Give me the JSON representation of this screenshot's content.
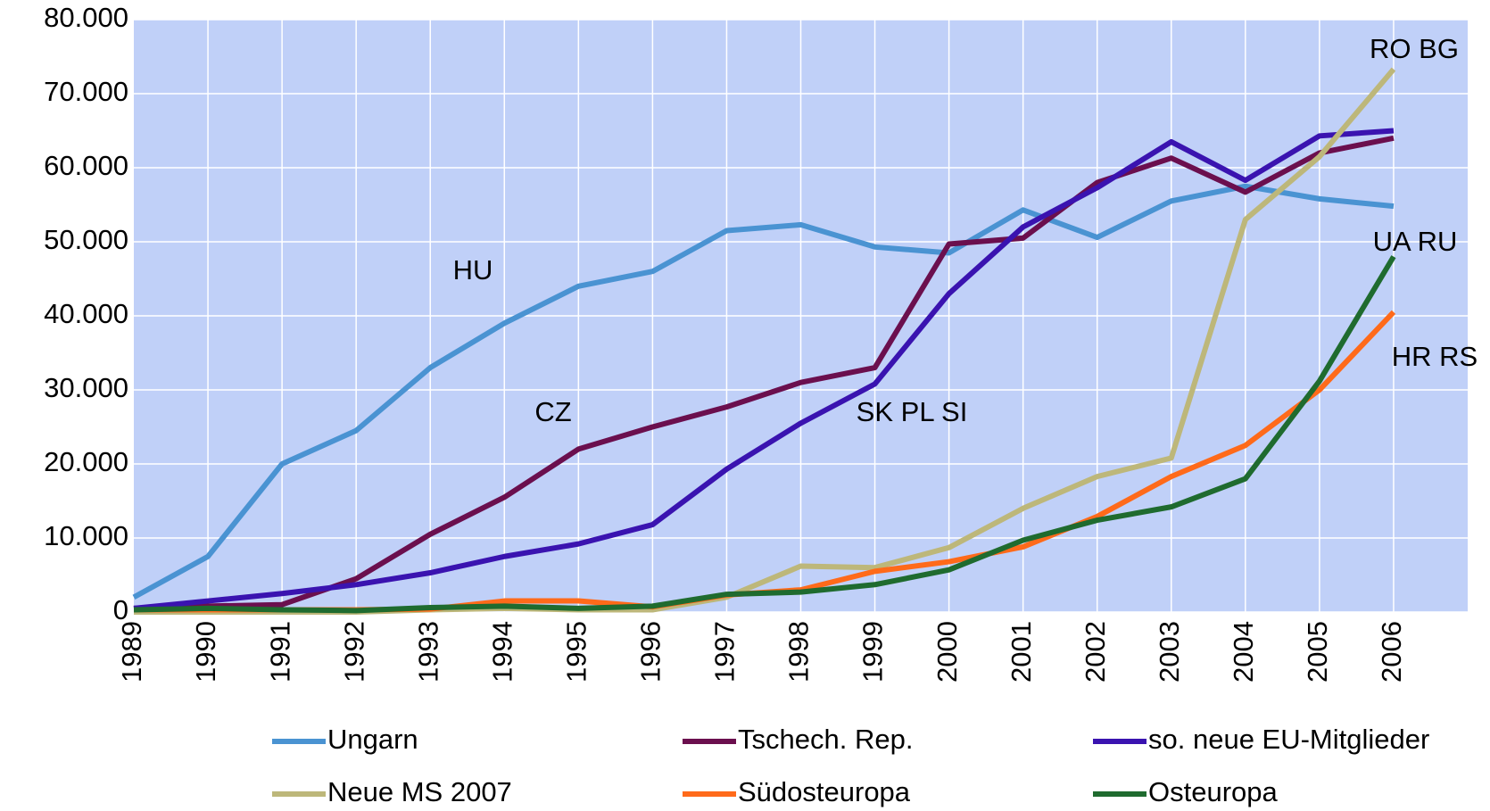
{
  "chart_data": {
    "type": "line",
    "categories": [
      "1989",
      "1990",
      "1991",
      "1992",
      "1993",
      "1994",
      "1995",
      "1996",
      "1997",
      "1998",
      "1999",
      "2000",
      "2001",
      "2002",
      "2003",
      "2004",
      "2005",
      "2006"
    ],
    "series": [
      {
        "name": "Ungarn",
        "color": "#4a93d2",
        "values": [
          2000,
          7500,
          20000,
          24500,
          33000,
          39000,
          44000,
          46000,
          51500,
          52300,
          49300,
          48500,
          54300,
          50600,
          55500,
          57500,
          55800,
          54800
        ]
      },
      {
        "name": "Tschech. Rep.",
        "color": "#6b0f4e",
        "values": [
          500,
          800,
          1000,
          4500,
          10500,
          15500,
          22000,
          25000,
          27700,
          31000,
          33000,
          49700,
          50500,
          58000,
          61300,
          56700,
          62000,
          64000
        ]
      },
      {
        "name": "so. neue EU-Mitglieder",
        "color": "#3a13b0",
        "values": [
          500,
          1500,
          2500,
          3700,
          5300,
          7500,
          9200,
          11800,
          19300,
          25500,
          30800,
          43000,
          52000,
          57300,
          63500,
          58300,
          64300,
          65000
        ]
      },
      {
        "name": "Neue MS 2007",
        "color": "#bdb77a",
        "values": [
          0,
          0,
          0,
          0,
          300,
          500,
          300,
          300,
          2000,
          6200,
          6000,
          8700,
          14000,
          18300,
          20800,
          53000,
          61500,
          73300
        ]
      },
      {
        "name": "Südosteuropa",
        "color": "#ff6a1a",
        "values": [
          300,
          300,
          300,
          300,
          400,
          1500,
          1500,
          700,
          2300,
          3000,
          5500,
          6800,
          8800,
          12900,
          18300,
          22500,
          30000,
          40500
        ]
      },
      {
        "name": "Osteuropa",
        "color": "#1f6b2f",
        "values": [
          300,
          500,
          300,
          200,
          600,
          800,
          500,
          800,
          2400,
          2700,
          3700,
          5700,
          9700,
          12400,
          14200,
          18000,
          31200,
          48000
        ]
      }
    ],
    "annotations": [
      "HU",
      "CZ",
      "SK PL SI",
      "RO BG",
      "UA RU",
      "HR RS"
    ],
    "ylim": [
      0,
      80000
    ],
    "yticks": [
      0,
      {
        "value": 10000,
        "label": "10.000"
      },
      {
        "value": 20000,
        "label": "20.000"
      },
      {
        "value": 30000,
        "label": "30.000"
      },
      {
        "value": 40000,
        "label": "40.000"
      },
      {
        "value": 50000,
        "label": "50.000"
      },
      {
        "value": 60000,
        "label": "60.000"
      },
      {
        "value": 70000,
        "label": "70.000"
      },
      {
        "value": 80000,
        "label": "80.000"
      }
    ],
    "grid": true,
    "plot_background": "#c0d0f8",
    "legend": "bottom"
  }
}
